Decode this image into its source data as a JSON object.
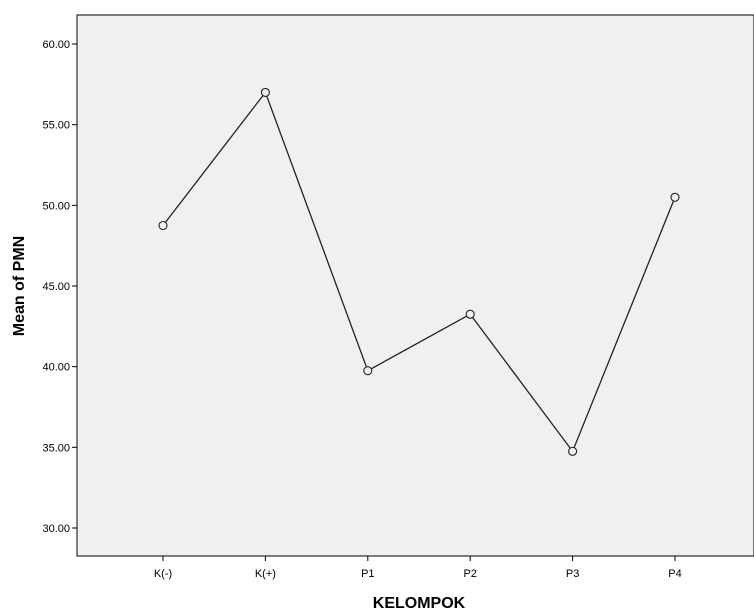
{
  "chart_data": {
    "type": "line",
    "title": "",
    "xlabel": "KELOMPOK",
    "ylabel": "Mean of PMN",
    "categories": [
      "K(-)",
      "K(+)",
      "P1",
      "P2",
      "P3",
      "P4"
    ],
    "series": [
      {
        "values": [
          48.75,
          57.0,
          39.75,
          43.25,
          34.75,
          50.5
        ]
      }
    ],
    "ylim": [
      28.0,
      62.0
    ],
    "yticks": [
      "30.00",
      "35.00",
      "40.00",
      "45.00",
      "50.00",
      "55.00",
      "60.00"
    ],
    "grid": false,
    "legend": "none",
    "colors": {
      "plot_background": "#f0f0f0",
      "line": "#222222",
      "marker_stroke": "#222222",
      "marker_fill": "#f0f0f0"
    }
  }
}
